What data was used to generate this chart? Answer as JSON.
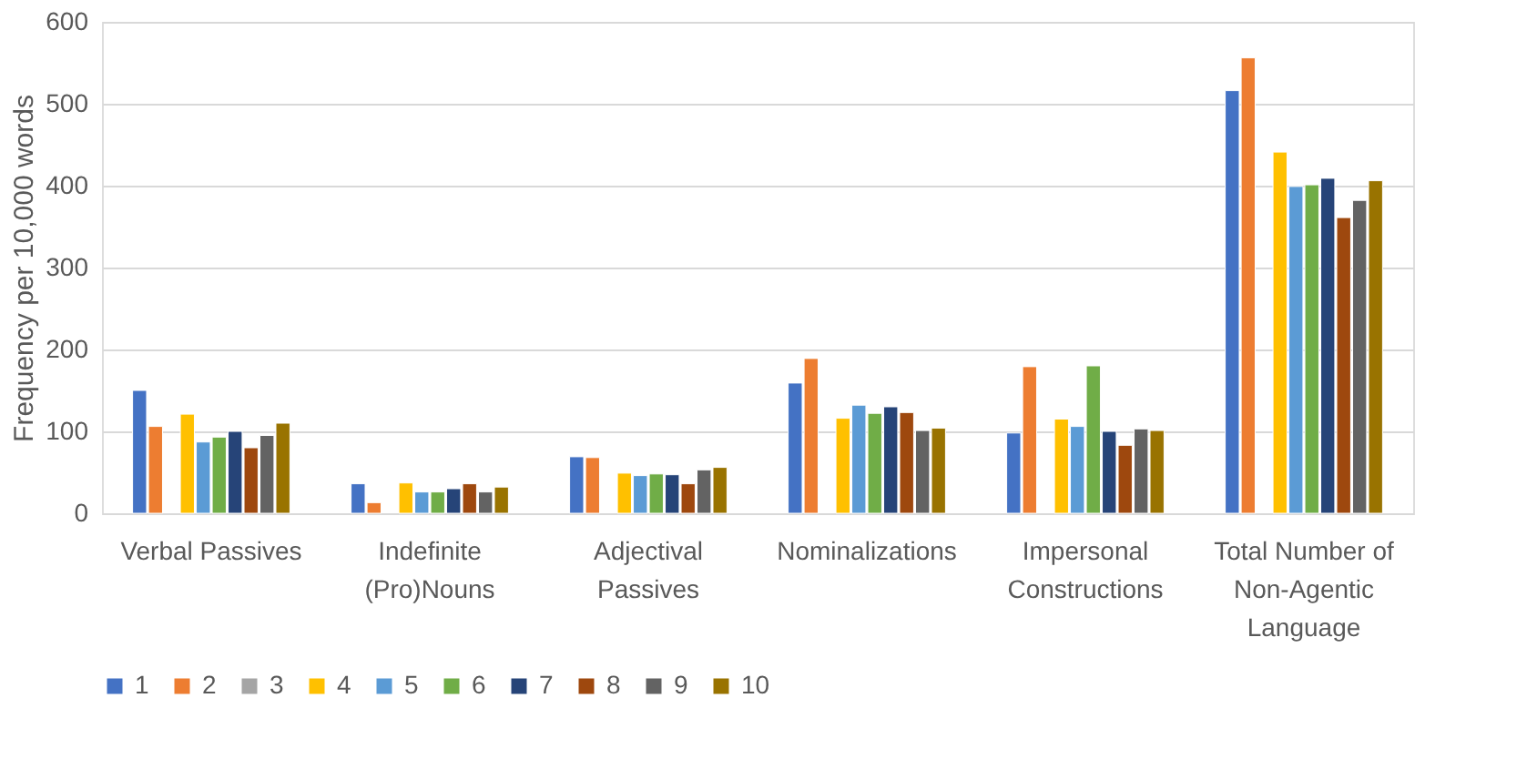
{
  "chart_data": {
    "type": "bar",
    "ylabel": "Frequency per  10,000 words",
    "categories": [
      "Verbal Passives",
      "Indefinite (Pro)Nouns",
      "Adjectival Passives",
      "Nominalizations",
      "Impersonal Constructions",
      "Total Number of Non-Agentic Language"
    ],
    "series": [
      {
        "name": "1",
        "color": "#4472c4",
        "values": [
          150,
          36,
          69,
          159,
          98,
          516
        ]
      },
      {
        "name": "2",
        "color": "#ed7d31",
        "values": [
          106,
          13,
          68,
          189,
          179,
          556
        ]
      },
      {
        "name": "3",
        "color": "#a5a5a5",
        "values": [
          null,
          null,
          null,
          null,
          null,
          null
        ]
      },
      {
        "name": "4",
        "color": "#ffc000",
        "values": [
          121,
          37,
          49,
          116,
          115,
          441
        ]
      },
      {
        "name": "5",
        "color": "#5b9bd5",
        "values": [
          87,
          26,
          46,
          132,
          106,
          399
        ]
      },
      {
        "name": "6",
        "color": "#70ad47",
        "values": [
          93,
          26,
          48,
          122,
          180,
          401
        ]
      },
      {
        "name": "7",
        "color": "#264478",
        "values": [
          100,
          30,
          47,
          130,
          100,
          409
        ]
      },
      {
        "name": "8",
        "color": "#9e480e",
        "values": [
          80,
          36,
          36,
          123,
          83,
          361
        ]
      },
      {
        "name": "9",
        "color": "#636363",
        "values": [
          95,
          26,
          53,
          101,
          103,
          382
        ]
      },
      {
        "name": "10",
        "color": "#997300",
        "values": [
          110,
          32,
          56,
          104,
          101,
          406
        ]
      }
    ],
    "ylim": [
      0,
      600
    ],
    "yticks": [
      0,
      100,
      200,
      300,
      400,
      500,
      600
    ],
    "grid": "y",
    "legend": "bottom"
  }
}
